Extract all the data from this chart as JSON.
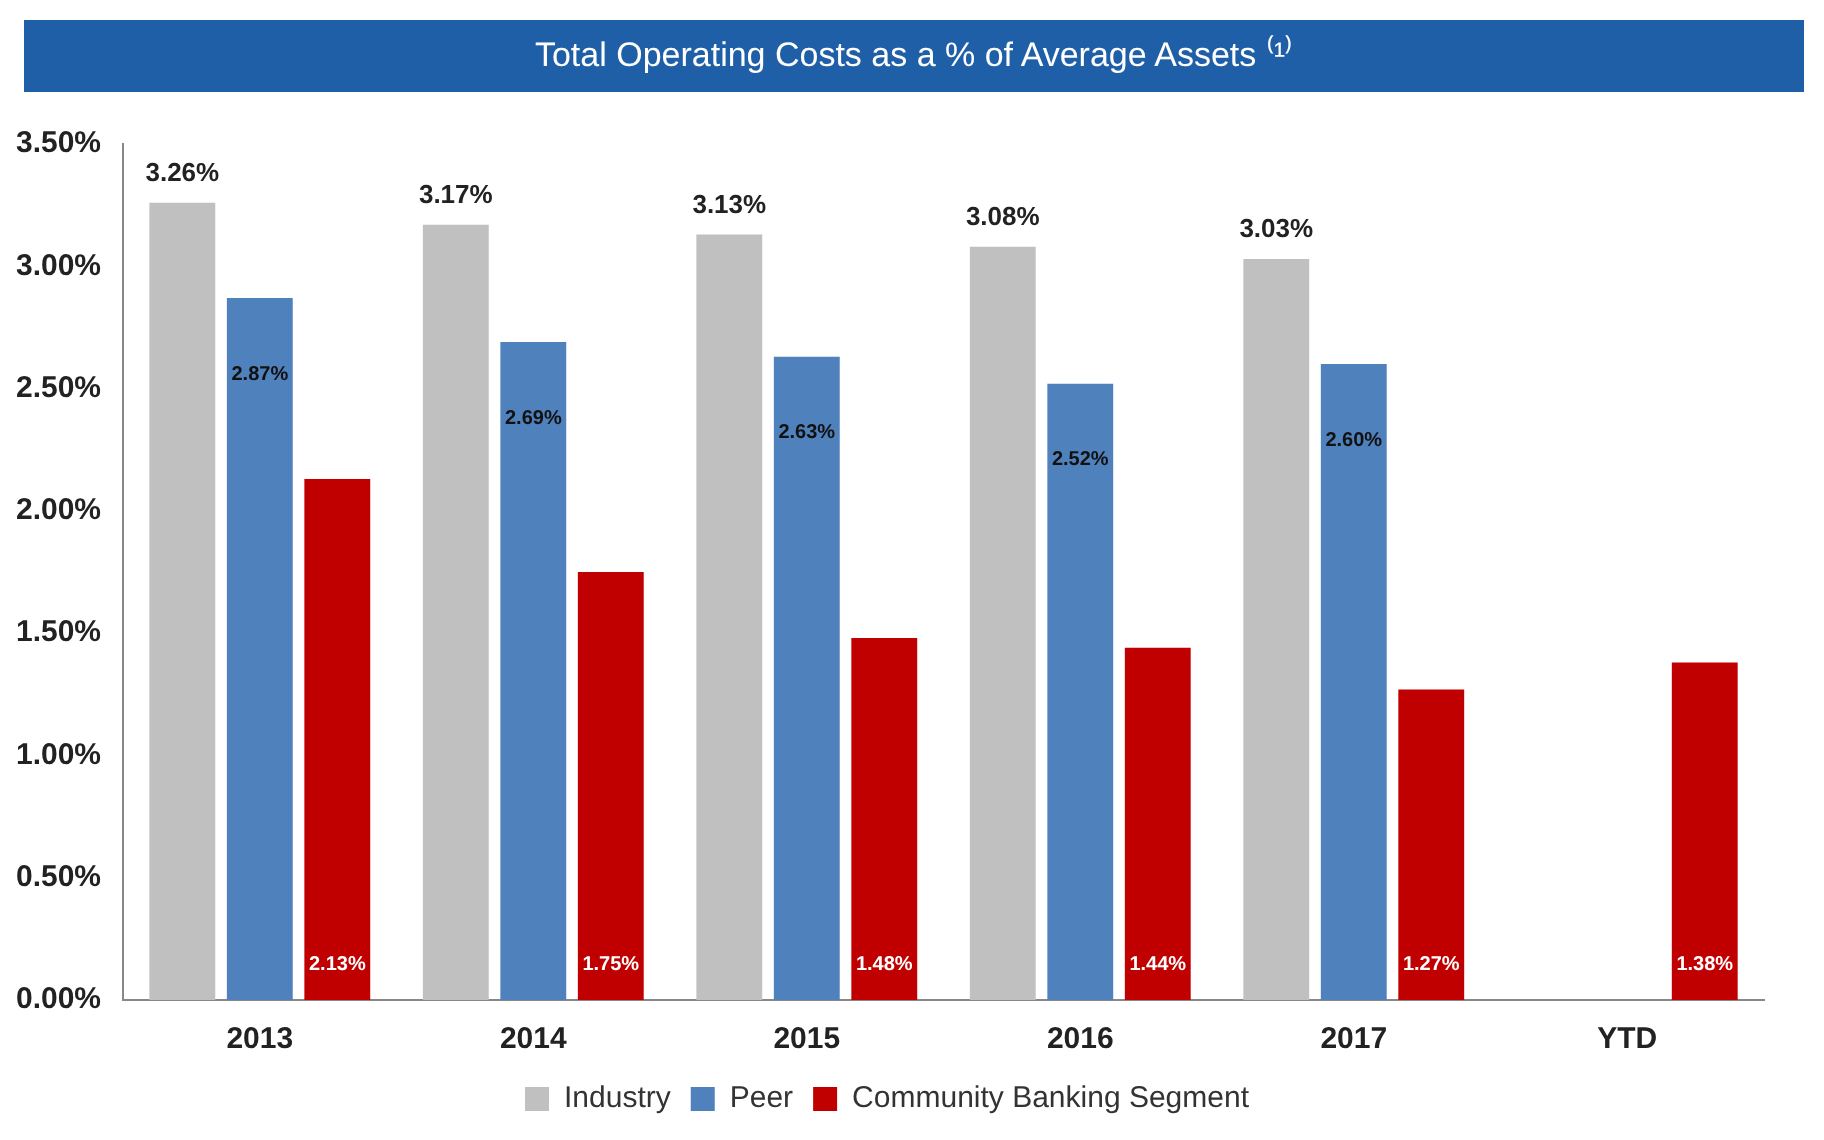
{
  "chart_data": {
    "type": "bar",
    "title": "Total Operating Costs as a % of Average Assets ⁽¹⁾",
    "categories": [
      "2013",
      "2014",
      "2015",
      "2016",
      "2017",
      "YTD"
    ],
    "series": [
      {
        "name": "Industry",
        "color": "#c0c0c0",
        "values": [
          3.26,
          3.17,
          3.13,
          3.08,
          3.03,
          null
        ],
        "value_labels": [
          "3.26%",
          "3.17%",
          "3.13%",
          "3.08%",
          "3.03%",
          null
        ]
      },
      {
        "name": "Peer",
        "color": "#4f81bd",
        "values": [
          2.87,
          2.69,
          2.63,
          2.52,
          2.6,
          null
        ],
        "value_labels": [
          "2.87%",
          "2.69%",
          "2.63%",
          "2.52%",
          "2.60%",
          null
        ]
      },
      {
        "name": "Community Banking Segment",
        "color": "#c00000",
        "values": [
          2.13,
          1.75,
          1.48,
          1.44,
          1.27,
          1.38
        ],
        "value_labels": [
          "2.13%",
          "1.75%",
          "1.48%",
          "1.44%",
          "1.27%",
          "1.38%"
        ]
      }
    ],
    "ylim": [
      0,
      3.5
    ],
    "yticks": [
      {
        "value": 0,
        "label": "0.00%"
      },
      {
        "value": 0.5,
        "label": "0.50%"
      },
      {
        "value": 1,
        "label": "1.00%"
      },
      {
        "value": 1.5,
        "label": "1.50%"
      },
      {
        "value": 2,
        "label": "2.00%"
      },
      {
        "value": 2.5,
        "label": "2.50%"
      },
      {
        "value": 3,
        "label": "3.00%"
      },
      {
        "value": 3.5,
        "label": "3.50%"
      }
    ],
    "grid": false,
    "legend": "bottom"
  }
}
